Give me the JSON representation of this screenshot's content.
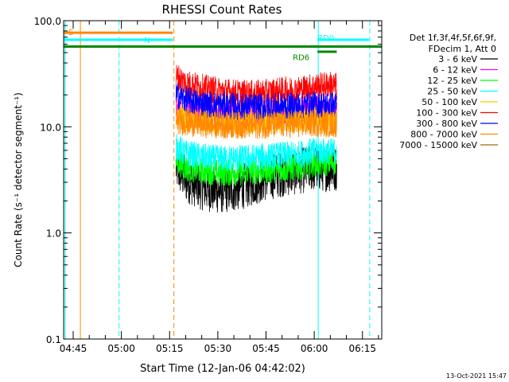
{
  "chart_data": {
    "type": "line",
    "title": "RHESSI Count Rates",
    "xlabel": "Start Time (12-Jan-06 04:42:02)",
    "ylabel": "Count Rate (s⁻¹ detector segment⁻¹)",
    "yscale": "log",
    "ylim": [
      0.1,
      100.0
    ],
    "xlim": [
      "04:42:02",
      "06:21:00"
    ],
    "x_ticks": [
      "04:45",
      "05:00",
      "05:15",
      "05:30",
      "05:45",
      "06:00",
      "06:15"
    ],
    "y_ticks": [
      "0.1",
      "1.0",
      "10.0",
      "100.0"
    ],
    "legend": {
      "placement": "right",
      "header": [
        "Det 1f,3f,4f,5f,6f,9f,",
        "FDecim 1, Att 0"
      ]
    },
    "series": [
      {
        "name": "3 - 6 keV",
        "color": "#000000",
        "start": "05:17",
        "end": "06:07",
        "times": [
          "05:17",
          "05:20",
          "05:25",
          "05:30",
          "05:35",
          "05:40",
          "05:45",
          "05:50",
          "05:55",
          "06:00",
          "06:05",
          "06:07"
        ],
        "values": [
          4.2,
          3.2,
          2.7,
          2.5,
          2.6,
          2.9,
          3.3,
          3.6,
          3.8,
          4.1,
          4.0,
          4.1
        ]
      },
      {
        "name": "6 - 12 keV",
        "color": "#ff00ff",
        "start": "05:17",
        "end": "06:07",
        "times": [
          "05:17",
          "05:20",
          "05:25",
          "05:30",
          "05:35",
          "05:40",
          "05:45",
          "05:50",
          "05:55",
          "06:00",
          "06:05",
          "06:07"
        ],
        "values": [
          15.5,
          14.5,
          14.0,
          13.5,
          13.5,
          13.6,
          13.8,
          14.2,
          14.5,
          14.8,
          14.5,
          14.5
        ]
      },
      {
        "name": "12 - 25 keV",
        "color": "#00ff00",
        "start": "05:17",
        "end": "06:07",
        "times": [
          "05:17",
          "05:20",
          "05:25",
          "05:30",
          "05:35",
          "05:40",
          "05:45",
          "05:50",
          "05:55",
          "06:00",
          "06:05",
          "06:07"
        ],
        "values": [
          4.8,
          4.1,
          3.9,
          3.7,
          3.7,
          3.8,
          3.9,
          4.0,
          4.2,
          4.5,
          4.6,
          4.7
        ]
      },
      {
        "name": "25 - 50 keV",
        "color": "#00ffff",
        "start": "05:17",
        "end": "06:07",
        "times": [
          "05:17",
          "05:20",
          "05:25",
          "05:30",
          "05:35",
          "05:40",
          "05:45",
          "05:50",
          "05:55",
          "06:00",
          "06:05",
          "06:07"
        ],
        "values": [
          6.5,
          5.6,
          5.2,
          5.0,
          5.0,
          5.1,
          5.2,
          5.4,
          5.5,
          5.9,
          5.8,
          5.9
        ]
      },
      {
        "name": "50 - 100 keV",
        "color": "#ffcc00",
        "start": "05:17",
        "end": "06:07",
        "times": [
          "05:17",
          "05:20",
          "05:25",
          "05:30",
          "05:35",
          "05:40",
          "05:45",
          "05:50",
          "05:55",
          "06:00",
          "06:05",
          "06:07"
        ],
        "values": [
          13.0,
          12.0,
          11.5,
          11.2,
          11.2,
          11.3,
          11.4,
          11.6,
          11.8,
          12.0,
          11.8,
          11.8
        ]
      },
      {
        "name": "100 - 300 keV",
        "color": "#ff0000",
        "start": "05:17",
        "end": "06:07",
        "times": [
          "05:17",
          "05:20",
          "05:25",
          "05:30",
          "05:35",
          "05:40",
          "05:45",
          "05:50",
          "05:55",
          "06:00",
          "06:05",
          "06:07"
        ],
        "values": [
          30.0,
          26.0,
          23.5,
          22.0,
          21.0,
          20.5,
          21.0,
          22.0,
          22.5,
          24.0,
          25.0,
          24.0
        ]
      },
      {
        "name": "300 - 800 keV",
        "color": "#0000ff",
        "start": "05:17",
        "end": "06:07",
        "times": [
          "05:17",
          "05:20",
          "05:25",
          "05:30",
          "05:35",
          "05:40",
          "05:45",
          "05:50",
          "05:55",
          "06:00",
          "06:05",
          "06:07"
        ],
        "values": [
          20.0,
          18.0,
          16.5,
          16.0,
          15.6,
          15.4,
          15.5,
          15.6,
          15.8,
          16.2,
          16.0,
          16.0
        ]
      },
      {
        "name": "800 - 7000 keV",
        "color": "#ff8800",
        "start": "05:17",
        "end": "06:07",
        "times": [
          "05:17",
          "05:20",
          "05:25",
          "05:30",
          "05:35",
          "05:40",
          "05:45",
          "05:50",
          "05:55",
          "06:00",
          "06:05",
          "06:07"
        ],
        "values": [
          11.5,
          11.0,
          10.6,
          10.4,
          10.3,
          10.3,
          10.4,
          10.5,
          10.6,
          10.8,
          10.6,
          10.6
        ]
      },
      {
        "name": "7000 - 15000 keV",
        "color": "#aa6600",
        "start": null,
        "end": null,
        "times": [],
        "values": []
      }
    ],
    "annotations": {
      "bars": [
        {
          "label": "S",
          "color": "#ff8800",
          "start": "04:42:02",
          "end": "05:16",
          "value": 77
        },
        {
          "label": "N",
          "color": "#00ffff",
          "start": "04:42:02",
          "end": "05:16",
          "value": 66
        },
        {
          "label": "RD6",
          "color": "#008800",
          "start": "04:42:02",
          "end": "06:21",
          "value": 57
        },
        {
          "label": "RD0",
          "color": "#00ffff",
          "start": "06:01",
          "end": "06:17",
          "value": 66
        },
        {
          "label": "",
          "color": "#008800",
          "start": "06:01",
          "end": "06:07",
          "value": 51
        }
      ],
      "vlines": [
        {
          "time": "04:42:30",
          "color": "#00ffff",
          "style": "solid"
        },
        {
          "time": "04:47:15",
          "color": "#ff8800",
          "style": "solid"
        },
        {
          "time": "04:59:15",
          "color": "#00ffff",
          "style": "dashed"
        },
        {
          "time": "05:16:20",
          "color": "#ff8800",
          "style": "dashed"
        },
        {
          "time": "06:01:15",
          "color": "#00ffff",
          "style": "solid"
        },
        {
          "time": "06:17:15",
          "color": "#00ffff",
          "style": "dashed"
        }
      ]
    },
    "footer_stamp": "13-Oct-2021 15:47",
    "grid": false
  }
}
